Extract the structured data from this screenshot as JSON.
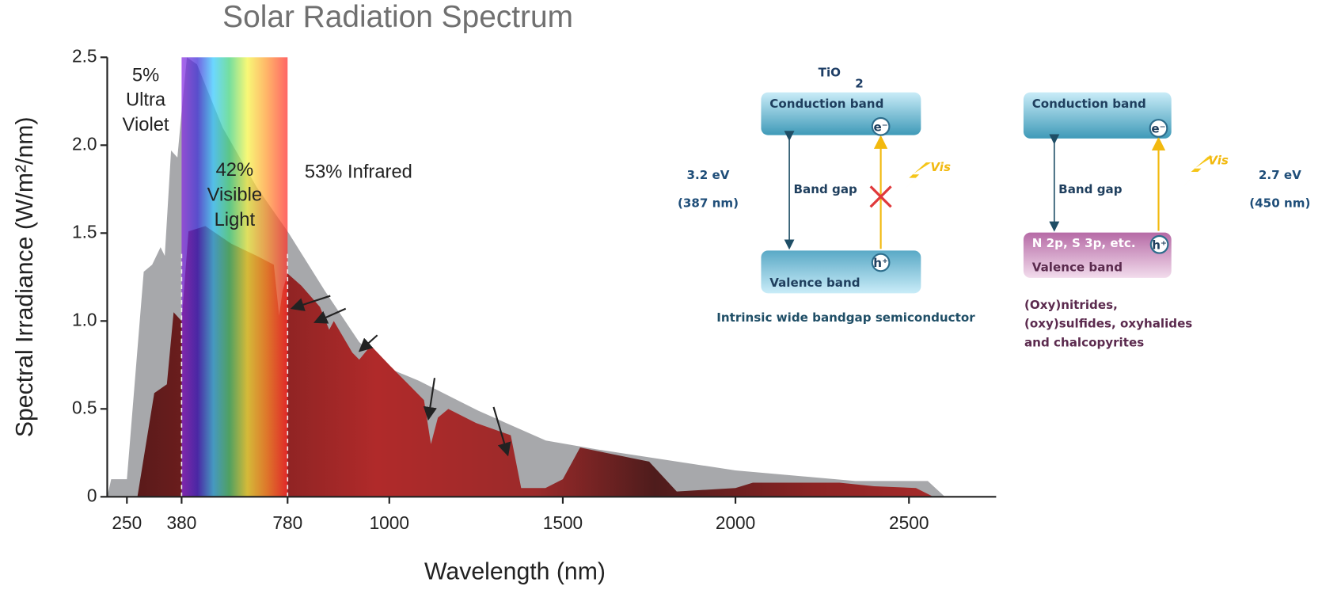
{
  "chart_data": {
    "type": "area",
    "title": "Solar Radiation Spectrum",
    "xlabel": "Wavelength (nm)",
    "ylabel": "Spectral Irradiance (W/m²/nm)",
    "xlim": [
      200,
      2750
    ],
    "ylim": [
      0,
      2.5
    ],
    "xticks": [
      250,
      380,
      780,
      1000,
      1500,
      2000,
      2500
    ],
    "yticks": [
      0,
      0.5,
      {
        "value": 1,
        "label": "1.0"
      },
      1.5,
      {
        "value": 2,
        "label": "2.0"
      },
      2.5
    ],
    "band": [
      380,
      780
    ],
    "series": [
      {
        "color": "#a7a8ab",
        "x": [
          200,
          210,
          250,
          270,
          290,
          310,
          330,
          340,
          355,
          370,
          380,
          400,
          438,
          535,
          664,
          780,
          861,
          935,
          1000,
          1085,
          1256,
          1451,
          1598,
          2000,
          2346,
          2554,
          2603
        ],
        "values": [
          0,
          0.1,
          0.1,
          0.69,
          1.28,
          1.32,
          1.42,
          1.37,
          1.97,
          1.93,
          2.19,
          2.5,
          2.46,
          2.1,
          1.76,
          1.51,
          1.17,
          0.88,
          0.73,
          0.66,
          0.49,
          0.32,
          0.27,
          0.15,
          0.09,
          0.09,
          0
        ]
      },
      {
        "color": "#a52a2a",
        "x": [
          275,
          315,
          345,
          361,
          380,
          406,
          470,
          567,
          664,
          728,
          748,
          761,
          780,
          810,
          850,
          870,
          880,
          920,
          935,
          960,
          1000,
          1050,
          1100,
          1120,
          1140,
          1170,
          1250,
          1350,
          1380,
          1450,
          1500,
          1550,
          1750,
          1830,
          2000,
          2050,
          2300,
          2400,
          2520,
          2570
        ],
        "values": [
          0,
          0.59,
          0.64,
          1.05,
          1.0,
          1.51,
          1.54,
          1.44,
          1.37,
          1.32,
          1.03,
          1.17,
          1.27,
          1.2,
          1.08,
          0.95,
          1.0,
          0.82,
          0.78,
          0.86,
          0.75,
          0.65,
          0.55,
          0.3,
          0.45,
          0.5,
          0.42,
          0.35,
          0.05,
          0.05,
          0.1,
          0.28,
          0.2,
          0.03,
          0.05,
          0.08,
          0.08,
          0.06,
          0.05,
          0
        ]
      }
    ],
    "annotations": [
      {
        "lines": [
          "5%",
          "Ultra",
          "Violet"
        ]
      },
      {
        "lines": [
          "42%",
          "Visible",
          "Light"
        ]
      },
      {
        "lines": [
          "53% Infrared"
        ]
      }
    ]
  },
  "diagrams": [
    {
      "title": "TiO",
      "title_sub": "2",
      "conduction": "Conduction band",
      "valence": [
        "Valence band"
      ],
      "gap": "Band gap",
      "electron": "e⁻",
      "hole": "h⁺",
      "light": "Vis",
      "energy": "3.2 eV",
      "wavelength": "(387 nm)",
      "caption": [
        "Intrinsic wide bandgap semiconductor"
      ]
    },
    {
      "conduction": "Conduction band",
      "valence": [
        "N 2p, S 3p, etc.",
        "Valence band"
      ],
      "gap": "Band gap",
      "electron": "e⁻",
      "hole": "h⁺",
      "light": "Vis",
      "energy": "2.7 eV",
      "wavelength": "(450 nm)",
      "caption": [
        "(Oxy)nitrides,",
        "(oxy)sulfides, oxyhalides",
        "and chalcopyrites"
      ]
    }
  ]
}
